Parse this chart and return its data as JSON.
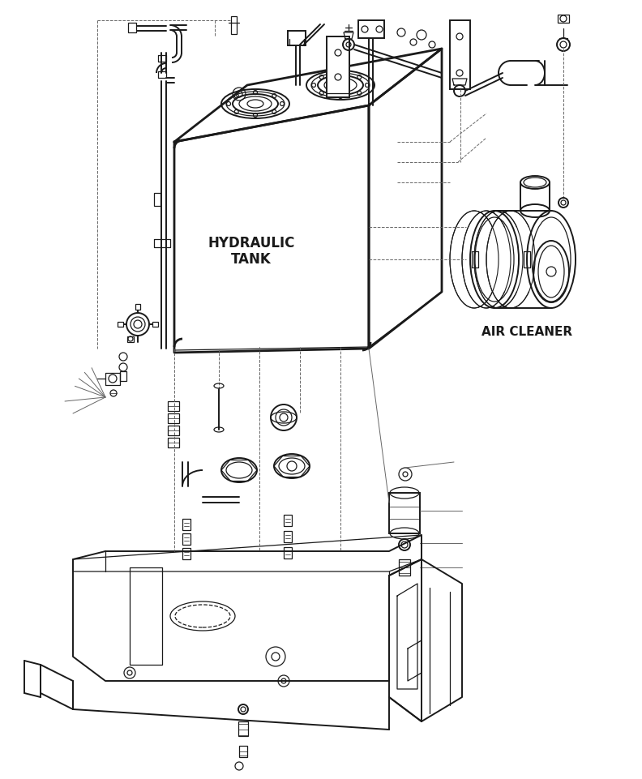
{
  "title": "HYDRAULIC TANK",
  "air_cleaner_label": "AIR CLEANER",
  "background_color": "#ffffff",
  "line_color": "#1a1a1a",
  "dashed_color": "#666666",
  "fig_width": 7.92,
  "fig_height": 9.61,
  "dpi": 100
}
